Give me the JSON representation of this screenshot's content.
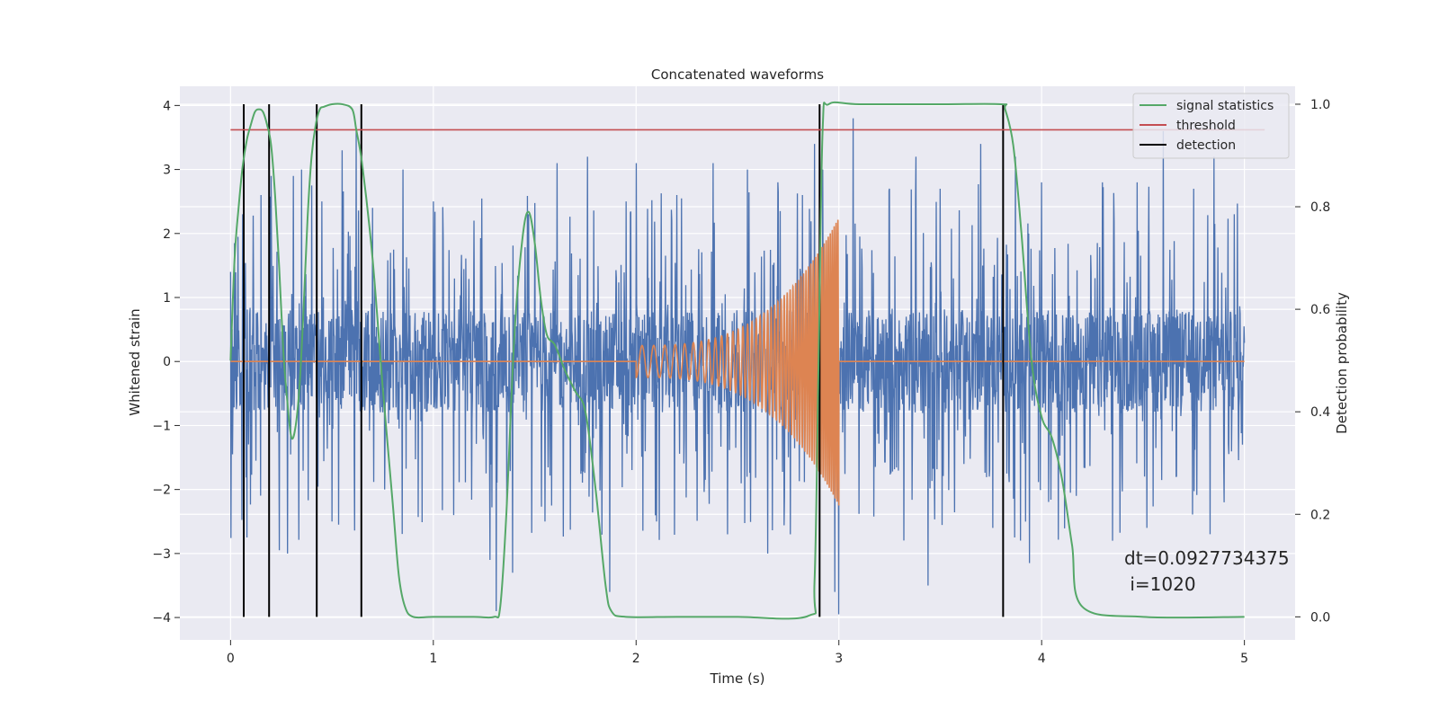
{
  "chart_data": {
    "type": "line",
    "title": "Concatenated waveforms",
    "xlabel": "Time (s)",
    "ylabel": "Whitened strain",
    "y2label": "Detection probability",
    "xlim": [
      -0.25,
      5.25
    ],
    "ylim": [
      -4.35,
      4.3
    ],
    "y2lim": [
      -0.045,
      1.035
    ],
    "x_ticks": [
      0,
      1,
      2,
      3,
      4,
      5
    ],
    "x_tick_labels": [
      "0",
      "1",
      "2",
      "3",
      "4",
      "5"
    ],
    "y_ticks": [
      -4,
      -3,
      -2,
      -1,
      0,
      1,
      2,
      3,
      4
    ],
    "y_tick_labels": [
      "−4",
      "−3",
      "−2",
      "−1",
      "0",
      "1",
      "2",
      "3",
      "4"
    ],
    "y2_ticks": [
      0.0,
      0.2,
      0.4,
      0.6,
      0.8,
      1.0
    ],
    "y2_tick_labels": [
      "0.0",
      "0.2",
      "0.4",
      "0.6",
      "0.8",
      "1.0"
    ],
    "grid": true,
    "legend_position": "top-right",
    "legend": [
      "signal statistics",
      "threshold",
      "detection"
    ],
    "annotation": {
      "line1": "dt=0.0927734375",
      "line2": " i=1020"
    },
    "series": [
      {
        "kind": "noise",
        "axis": "left",
        "color": "#4c72b0",
        "x_range": [
          0,
          5
        ],
        "core_amplitude": 0.8,
        "peaks": [
          {
            "x": 0.0,
            "y": 1.4
          },
          {
            "x": 0.01,
            "y": -1.45
          },
          {
            "x": 0.02,
            "y": 1.85
          },
          {
            "x": 0.06,
            "y": 2.3
          },
          {
            "x": 0.08,
            "y": -2.75
          },
          {
            "x": 0.15,
            "y": 2.6
          },
          {
            "x": 0.2,
            "y": 2.9
          },
          {
            "x": 0.24,
            "y": -2.95
          },
          {
            "x": 0.28,
            "y": -3.0
          },
          {
            "x": 0.31,
            "y": 2.9
          },
          {
            "x": 0.35,
            "y": 3.0
          },
          {
            "x": 0.4,
            "y": 2.75
          },
          {
            "x": 0.45,
            "y": 2.5
          },
          {
            "x": 0.5,
            "y": -2.5
          },
          {
            "x": 0.55,
            "y": 3.3
          },
          {
            "x": 0.62,
            "y": 3.6
          },
          {
            "x": 0.7,
            "y": 2.4
          },
          {
            "x": 0.76,
            "y": -2.0
          },
          {
            "x": 0.85,
            "y": 3.0
          },
          {
            "x": 1.0,
            "y": 2.5
          },
          {
            "x": 1.1,
            "y": -2.4
          },
          {
            "x": 1.2,
            "y": 2.2
          },
          {
            "x": 1.28,
            "y": -3.1
          },
          {
            "x": 1.31,
            "y": -3.9
          },
          {
            "x": 1.39,
            "y": -3.3
          },
          {
            "x": 1.47,
            "y": 2.3
          },
          {
            "x": 1.55,
            "y": -2.5
          },
          {
            "x": 1.61,
            "y": 3.1
          },
          {
            "x": 1.76,
            "y": 3.2
          },
          {
            "x": 1.87,
            "y": -3.6
          },
          {
            "x": 1.95,
            "y": 2.5
          },
          {
            "x": 2.0,
            "y": 3.1
          },
          {
            "x": 2.1,
            "y": -2.5
          },
          {
            "x": 2.2,
            "y": 2.6
          },
          {
            "x": 2.38,
            "y": 3.1
          },
          {
            "x": 2.45,
            "y": -2.7
          },
          {
            "x": 2.55,
            "y": 3.0
          },
          {
            "x": 2.65,
            "y": -3.0
          },
          {
            "x": 2.7,
            "y": 2.8
          },
          {
            "x": 2.76,
            "y": -2.7
          },
          {
            "x": 2.82,
            "y": 2.6
          },
          {
            "x": 2.88,
            "y": 3.4
          },
          {
            "x": 2.92,
            "y": 3.0
          },
          {
            "x": 2.98,
            "y": -3.6
          },
          {
            "x": 3.0,
            "y": -3.95
          },
          {
            "x": 3.07,
            "y": 3.8
          },
          {
            "x": 3.25,
            "y": 2.7
          },
          {
            "x": 3.38,
            "y": 3.2
          },
          {
            "x": 3.44,
            "y": -3.5
          },
          {
            "x": 3.5,
            "y": 2.7
          },
          {
            "x": 3.7,
            "y": 3.4
          },
          {
            "x": 3.76,
            "y": -2.6
          },
          {
            "x": 3.87,
            "y": 3.2
          },
          {
            "x": 3.94,
            "y": -3.15
          },
          {
            "x": 4.0,
            "y": 2.8
          },
          {
            "x": 4.3,
            "y": 2.8
          },
          {
            "x": 4.35,
            "y": -2.8
          },
          {
            "x": 4.47,
            "y": 2.8
          },
          {
            "x": 4.52,
            "y": -2.6
          },
          {
            "x": 4.6,
            "y": 3.6
          },
          {
            "x": 4.75,
            "y": 2.7
          },
          {
            "x": 4.85,
            "y": 3.2
          },
          {
            "x": 4.9,
            "y": -2.2
          },
          {
            "x": 4.95,
            "y": 2.3
          },
          {
            "x": 4.99,
            "y": -1.3
          }
        ]
      },
      {
        "kind": "chirp",
        "axis": "left",
        "color": "#dd8452",
        "x_range": [
          0,
          5
        ],
        "chirp_range": [
          2.0,
          3.0
        ],
        "start_amplitude": 0.25,
        "end_amplitude": 2.25,
        "start_frequency": 17,
        "end_frequency": 110
      },
      {
        "name": "signal statistics",
        "axis": "right",
        "color": "#55a868",
        "x": [
          0.0,
          0.02,
          0.04,
          0.06,
          0.08,
          0.1,
          0.12,
          0.14,
          0.16,
          0.18,
          0.2,
          0.22,
          0.24,
          0.26,
          0.28,
          0.3,
          0.32,
          0.34,
          0.36,
          0.38,
          0.4,
          0.42,
          0.44,
          0.46,
          0.5,
          0.55,
          0.6,
          0.62,
          0.65,
          0.7,
          0.75,
          0.8,
          0.83,
          0.86,
          0.9,
          1.0,
          1.2,
          1.3,
          1.33,
          1.36,
          1.4,
          1.44,
          1.47,
          1.5,
          1.53,
          1.56,
          1.6,
          1.65,
          1.7,
          1.75,
          1.8,
          1.85,
          1.88,
          1.95,
          2.2,
          2.5,
          2.85,
          2.88,
          2.9,
          2.92,
          2.95,
          3.1,
          3.5,
          3.8,
          3.82,
          3.86,
          3.9,
          3.95,
          4.0,
          4.05,
          4.1,
          4.15,
          4.2,
          4.5,
          5.0
        ],
        "y": [
          0.5,
          0.7,
          0.8,
          0.88,
          0.93,
          0.96,
          0.985,
          0.99,
          0.985,
          0.96,
          0.92,
          0.82,
          0.68,
          0.52,
          0.42,
          0.35,
          0.37,
          0.45,
          0.6,
          0.78,
          0.9,
          0.96,
          0.99,
          0.995,
          1.0,
          1.0,
          0.99,
          0.95,
          0.88,
          0.7,
          0.45,
          0.22,
          0.08,
          0.02,
          0.0,
          0.0,
          0.0,
          0.0,
          0.02,
          0.2,
          0.55,
          0.74,
          0.79,
          0.73,
          0.62,
          0.55,
          0.53,
          0.48,
          0.44,
          0.4,
          0.25,
          0.06,
          0.01,
          0.0,
          0.0,
          0.0,
          0.002,
          0.07,
          0.5,
          0.95,
          1.0,
          1.0,
          1.0,
          1.0,
          0.99,
          0.92,
          0.75,
          0.5,
          0.39,
          0.35,
          0.27,
          0.14,
          0.02,
          0.0,
          0.0
        ]
      },
      {
        "name": "threshold",
        "axis": "right",
        "color": "#c44e52",
        "x": [
          0,
          5.1
        ],
        "y": [
          0.95,
          0.95
        ]
      },
      {
        "name": "detection",
        "axis": "right",
        "color": "#000000",
        "x": [
          0.065,
          0.19,
          0.425,
          0.645,
          2.905,
          3.81
        ],
        "y_range": [
          0.0,
          1.0
        ]
      }
    ]
  }
}
